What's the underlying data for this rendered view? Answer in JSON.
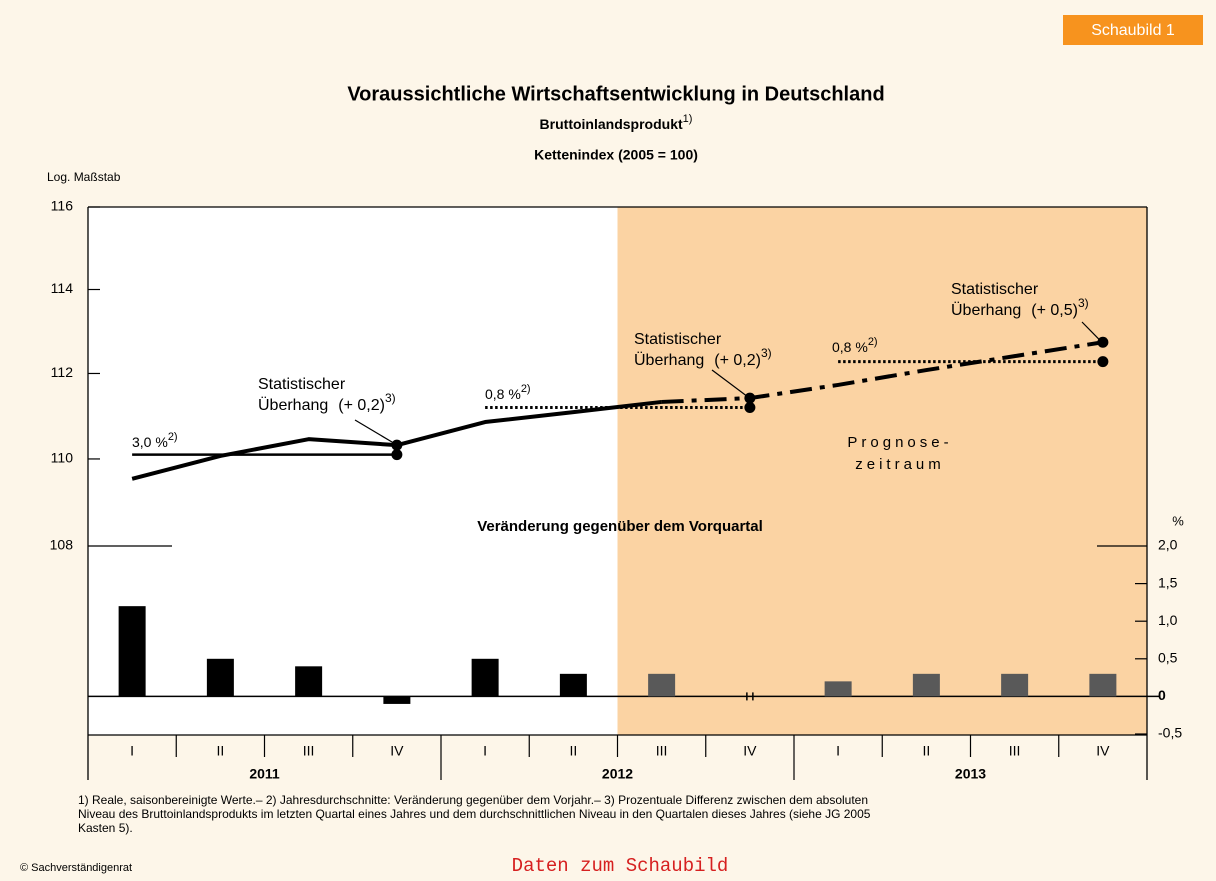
{
  "badge": "Schaubild 1",
  "chart_data": {
    "type": "line",
    "title": "Voraussichtliche Wirtschaftsentwicklung in Deutschland",
    "subtitle": "Bruttoinlandsprodukt",
    "subtitle_note": "1)",
    "subtitle2": "Kettenindex (2005 = 100)",
    "y_label": "Log. Maßstab",
    "y2_label": "%",
    "log": true,
    "ylim": [
      108,
      116
    ],
    "yticks": [
      108,
      110,
      112,
      114,
      116
    ],
    "y2lim": [
      -0.5,
      2.0
    ],
    "y2ticks": [
      {
        "value": -0.5,
        "label": "-0,5"
      },
      0,
      {
        "value": 0.5,
        "label": "0,5"
      },
      {
        "value": 1.0,
        "label": "1,0"
      },
      {
        "value": 1.5,
        "label": "1,5"
      },
      {
        "value": 2.0,
        "label": "2,0"
      }
    ],
    "categories": [
      "I",
      "II",
      "III",
      "IV",
      "I",
      "II",
      "III",
      "IV",
      "I",
      "II",
      "III",
      "IV"
    ],
    "groups": [
      "2011",
      "2012",
      "2013"
    ],
    "shade_start": 6,
    "shade_color": "#fbd3a3",
    "series": [
      {
        "color": "#000000",
        "style": "solid",
        "values": [
          109.54,
          110.07,
          110.46,
          110.32,
          110.86,
          111.09,
          111.33,
          null,
          null,
          null,
          null,
          null
        ]
      },
      {
        "color": "#000000",
        "style": "dash-dot",
        "values": [
          null,
          null,
          null,
          null,
          null,
          null,
          111.33,
          111.42,
          111.73,
          112.08,
          112.41,
          112.74
        ]
      }
    ],
    "bars": {
      "type": "bar",
      "axis": "y2",
      "title": "Veränderung gegenüber dem Vorquartal",
      "values": [
        1.2,
        0.5,
        0.4,
        -0.1,
        0.5,
        0.3,
        0.3,
        0,
        0.2,
        0.3,
        0.3,
        0.3
      ],
      "colors": [
        "#000000",
        "#000000",
        "#000000",
        "#000000",
        "#000000",
        "#000000",
        "#595959",
        "#595959",
        "#595959",
        "#595959",
        "#595959",
        "#595959"
      ]
    },
    "averages": [
      {
        "label": "3,0 %",
        "note": "2)",
        "value": 110.1,
        "from": 0,
        "to": 3,
        "style": "solid"
      },
      {
        "label": "0,8 %",
        "note": "2)",
        "value": 111.2,
        "from": 4,
        "to": 7,
        "style": "dotted"
      },
      {
        "label": "0,8 %",
        "note": "2)",
        "value": 112.28,
        "from": 8,
        "to": 11,
        "style": "dotted"
      }
    ],
    "overhangs": [
      {
        "line1": "Statistischer",
        "line2": "Überhang",
        "amount": "(+ 0,2)",
        "note": "3)"
      },
      {
        "line1": "Statistischer",
        "line2": "Überhang",
        "amount": "(+ 0,2)",
        "note": "3)"
      },
      {
        "line1": "Statistischer",
        "line2": "Überhang",
        "amount": "(+ 0,5)",
        "note": "3)"
      }
    ],
    "forecast_label": [
      "Prognose-",
      "zeitraum"
    ]
  },
  "footnote": [
    "1) Reale, saisonbereinigte Werte.– 2) Jahresdurchschnitte: Veränderung gegenüber dem Vorjahr.– 3) Prozentuale Differenz zwischen dem absoluten",
    "Niveau des Bruttoinlandsprodukts im letzten Quartal eines Jahres und dem durchschnittlichen Niveau in den Quartalen dieses Jahres (siehe JG 2005",
    "Kasten 5)."
  ],
  "copyright": "© Sachverständigenrat",
  "link": "Daten zum Schaubild"
}
